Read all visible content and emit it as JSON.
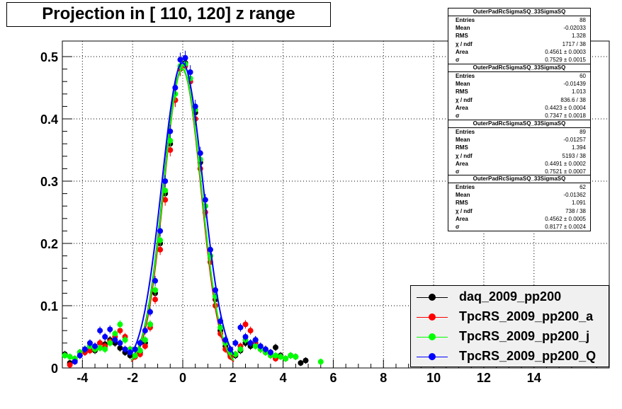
{
  "title": "Projection in [ 110, 120] z range",
  "chart_data": {
    "type": "scatter",
    "title": "Projection in [ 110, 120] z range",
    "xlabel": "",
    "ylabel": "",
    "xlim": [
      -4.8,
      17
    ],
    "ylim": [
      0,
      0.525
    ],
    "xticks": [
      -4,
      -2,
      0,
      2,
      4,
      6,
      8,
      10,
      12,
      14
    ],
    "yticks": [
      0,
      0.1,
      0.2,
      0.3,
      0.4,
      0.5
    ],
    "grid": true,
    "legend_position": "bottom-right",
    "series": [
      {
        "name": "daq_2009_pp200",
        "color": "#000000",
        "fit": {
          "amplitude": 0.48,
          "mean": -0.02,
          "sigma": 0.753
        },
        "points": [
          [
            -4.7,
            0.022
          ],
          [
            -4.5,
            0.008
          ],
          [
            -4.3,
            0.012
          ],
          [
            -4.1,
            0.025
          ],
          [
            -3.9,
            0.03
          ],
          [
            -3.7,
            0.035
          ],
          [
            -3.5,
            0.028
          ],
          [
            -3.3,
            0.04
          ],
          [
            -3.1,
            0.038
          ],
          [
            -2.9,
            0.045
          ],
          [
            -2.7,
            0.04
          ],
          [
            -2.5,
            0.032
          ],
          [
            -2.3,
            0.025
          ],
          [
            -2.1,
            0.02
          ],
          [
            -1.9,
            0.02
          ],
          [
            -1.7,
            0.025
          ],
          [
            -1.5,
            0.04
          ],
          [
            -1.3,
            0.07
          ],
          [
            -1.1,
            0.12
          ],
          [
            -0.9,
            0.2
          ],
          [
            -0.7,
            0.28
          ],
          [
            -0.5,
            0.36
          ],
          [
            -0.3,
            0.43
          ],
          [
            -0.1,
            0.48
          ],
          [
            0.1,
            0.49
          ],
          [
            0.3,
            0.46
          ],
          [
            0.5,
            0.41
          ],
          [
            0.7,
            0.33
          ],
          [
            0.9,
            0.26
          ],
          [
            1.1,
            0.18
          ],
          [
            1.3,
            0.11
          ],
          [
            1.5,
            0.06
          ],
          [
            1.7,
            0.035
          ],
          [
            1.9,
            0.02
          ],
          [
            2.1,
            0.02
          ],
          [
            2.3,
            0.028
          ],
          [
            2.5,
            0.04
          ],
          [
            2.7,
            0.035
          ],
          [
            2.9,
            0.045
          ],
          [
            3.1,
            0.03
          ],
          [
            3.3,
            0.03
          ],
          [
            3.5,
            0.025
          ],
          [
            3.7,
            0.033
          ],
          [
            3.9,
            0.02
          ],
          [
            4.1,
            0.015
          ],
          [
            4.3,
            0.02
          ],
          [
            4.5,
            0.018
          ],
          [
            4.7,
            0.008
          ],
          [
            4.9,
            0.012
          ]
        ]
      },
      {
        "name": "TpcRS_2009_pp200_a",
        "color": "#ff0000",
        "fit": {
          "amplitude": 0.48,
          "mean": -0.014,
          "sigma": 0.735
        },
        "points": [
          [
            -4.5,
            0.005
          ],
          [
            -4.3,
            0.015
          ],
          [
            -4.1,
            0.02
          ],
          [
            -3.9,
            0.025
          ],
          [
            -3.7,
            0.028
          ],
          [
            -3.5,
            0.03
          ],
          [
            -3.3,
            0.04
          ],
          [
            -3.1,
            0.035
          ],
          [
            -2.9,
            0.042
          ],
          [
            -2.7,
            0.05
          ],
          [
            -2.5,
            0.06
          ],
          [
            -2.3,
            0.05
          ],
          [
            -2.1,
            0.03
          ],
          [
            -1.9,
            0.018
          ],
          [
            -1.7,
            0.022
          ],
          [
            -1.5,
            0.035
          ],
          [
            -1.3,
            0.065
          ],
          [
            -1.1,
            0.11
          ],
          [
            -0.9,
            0.19
          ],
          [
            -0.7,
            0.27
          ],
          [
            -0.5,
            0.35
          ],
          [
            -0.3,
            0.43
          ],
          [
            -0.1,
            0.48
          ],
          [
            0.1,
            0.485
          ],
          [
            0.3,
            0.46
          ],
          [
            0.5,
            0.4
          ],
          [
            0.7,
            0.32
          ],
          [
            0.9,
            0.25
          ],
          [
            1.1,
            0.17
          ],
          [
            1.3,
            0.1
          ],
          [
            1.5,
            0.055
          ],
          [
            1.7,
            0.03
          ],
          [
            1.9,
            0.018
          ],
          [
            2.1,
            0.022
          ],
          [
            2.3,
            0.035
          ],
          [
            2.5,
            0.07
          ],
          [
            2.7,
            0.06
          ],
          [
            2.9,
            0.04
          ],
          [
            3.1,
            0.03
          ],
          [
            3.3,
            0.025
          ],
          [
            3.5,
            0.02
          ],
          [
            3.7,
            0.015
          ]
        ]
      },
      {
        "name": "TpcRS_2009_pp200_j",
        "color": "#00ff00",
        "fit": {
          "amplitude": 0.48,
          "mean": -0.013,
          "sigma": 0.752
        },
        "points": [
          [
            -4.7,
            0.02
          ],
          [
            -4.5,
            0.018
          ],
          [
            -4.3,
            0.015
          ],
          [
            -4.1,
            0.025
          ],
          [
            -3.9,
            0.03
          ],
          [
            -3.7,
            0.035
          ],
          [
            -3.5,
            0.03
          ],
          [
            -3.3,
            0.032
          ],
          [
            -3.1,
            0.03
          ],
          [
            -2.9,
            0.04
          ],
          [
            -2.7,
            0.055
          ],
          [
            -2.5,
            0.07
          ],
          [
            -2.3,
            0.045
          ],
          [
            -2.1,
            0.03
          ],
          [
            -1.9,
            0.02
          ],
          [
            -1.7,
            0.028
          ],
          [
            -1.5,
            0.045
          ],
          [
            -1.3,
            0.07
          ],
          [
            -1.1,
            0.125
          ],
          [
            -0.9,
            0.205
          ],
          [
            -0.7,
            0.285
          ],
          [
            -0.5,
            0.365
          ],
          [
            -0.3,
            0.44
          ],
          [
            -0.1,
            0.485
          ],
          [
            0.1,
            0.488
          ],
          [
            0.3,
            0.465
          ],
          [
            0.5,
            0.415
          ],
          [
            0.7,
            0.335
          ],
          [
            0.9,
            0.26
          ],
          [
            1.1,
            0.18
          ],
          [
            1.3,
            0.115
          ],
          [
            1.5,
            0.065
          ],
          [
            1.7,
            0.04
          ],
          [
            1.9,
            0.025
          ],
          [
            2.1,
            0.022
          ],
          [
            2.3,
            0.03
          ],
          [
            2.5,
            0.045
          ],
          [
            2.7,
            0.04
          ],
          [
            2.9,
            0.035
          ],
          [
            3.1,
            0.03
          ],
          [
            3.3,
            0.025
          ],
          [
            3.5,
            0.02
          ],
          [
            3.7,
            0.02
          ],
          [
            3.9,
            0.018
          ],
          [
            4.1,
            0.015
          ],
          [
            4.3,
            0.02
          ],
          [
            4.5,
            0.018
          ],
          [
            5.5,
            0.01
          ]
        ]
      },
      {
        "name": "TpcRS_2009_pp200_Q",
        "color": "#0000ff",
        "fit": {
          "amplitude": 0.49,
          "mean": -0.014,
          "sigma": 0.818
        },
        "points": [
          [
            -4.3,
            0.01
          ],
          [
            -4.1,
            0.02
          ],
          [
            -3.9,
            0.03
          ],
          [
            -3.7,
            0.04
          ],
          [
            -3.5,
            0.035
          ],
          [
            -3.3,
            0.06
          ],
          [
            -3.1,
            0.05
          ],
          [
            -2.9,
            0.062
          ],
          [
            -2.7,
            0.045
          ],
          [
            -2.5,
            0.04
          ],
          [
            -2.3,
            0.03
          ],
          [
            -2.1,
            0.025
          ],
          [
            -1.9,
            0.03
          ],
          [
            -1.7,
            0.04
          ],
          [
            -1.5,
            0.06
          ],
          [
            -1.3,
            0.09
          ],
          [
            -1.1,
            0.14
          ],
          [
            -0.9,
            0.22
          ],
          [
            -0.7,
            0.3
          ],
          [
            -0.5,
            0.38
          ],
          [
            -0.3,
            0.45
          ],
          [
            -0.1,
            0.495
          ],
          [
            0.1,
            0.498
          ],
          [
            0.3,
            0.475
          ],
          [
            0.5,
            0.42
          ],
          [
            0.7,
            0.345
          ],
          [
            0.9,
            0.27
          ],
          [
            1.1,
            0.19
          ],
          [
            1.3,
            0.125
          ],
          [
            1.5,
            0.075
          ],
          [
            1.7,
            0.045
          ],
          [
            1.9,
            0.03
          ],
          [
            2.1,
            0.04
          ],
          [
            2.3,
            0.065
          ],
          [
            2.5,
            0.05
          ],
          [
            2.7,
            0.04
          ],
          [
            2.9,
            0.045
          ],
          [
            3.1,
            0.035
          ],
          [
            3.3,
            0.03
          ],
          [
            3.5,
            0.025
          ]
        ]
      }
    ]
  },
  "stats_boxes": [
    {
      "header": "OuterPadRcSigmaSQ_33SigmaSQ",
      "rows": [
        [
          "Entries",
          "88"
        ],
        [
          "Mean",
          "-0.02033"
        ],
        [
          "RMS",
          "1.328"
        ],
        [
          "χ  / ndf",
          "1717 / 38"
        ],
        [
          "Area",
          "0.4561 ± 0.0003"
        ],
        [
          "σ",
          "0.7529 ± 0.0015"
        ]
      ]
    },
    {
      "header": "OuterPadRcSigmaSQ_33SigmaSQ",
      "rows": [
        [
          "Entries",
          "60"
        ],
        [
          "Mean",
          "-0.01439"
        ],
        [
          "RMS",
          "1.013"
        ],
        [
          "χ  / ndf",
          "836.6 / 38"
        ],
        [
          "Area",
          "0.4423 ± 0.0004"
        ],
        [
          "σ",
          "0.7347 ± 0.0018"
        ]
      ]
    },
    {
      "header": "OuterPadRcSigmaSQ_33SigmaSQ",
      "rows": [
        [
          "Entries",
          "89"
        ],
        [
          "Mean",
          "-0.01257"
        ],
        [
          "RMS",
          "1.394"
        ],
        [
          "χ  / ndf",
          "5193 / 38"
        ],
        [
          "Area",
          "0.4491 ± 0.0002"
        ],
        [
          "σ",
          "0.7521 ± 0.0007"
        ]
      ]
    },
    {
      "header": "OuterPadRcSigmaSQ_33SigmaSQ",
      "rows": [
        [
          "Entries",
          "62"
        ],
        [
          "Mean",
          "-0.01362"
        ],
        [
          "RMS",
          "1.091"
        ],
        [
          "χ  / ndf",
          "738 / 38"
        ],
        [
          "Area",
          "0.4562 ± 0.0005"
        ],
        [
          "σ",
          "0.8177 ± 0.0024"
        ]
      ]
    }
  ],
  "legend": {
    "items": [
      {
        "label": "daq_2009_pp200",
        "color": "#000000"
      },
      {
        "label": "TpcRS_2009_pp200_a",
        "color": "#ff0000"
      },
      {
        "label": "TpcRS_2009_pp200_j",
        "color": "#00ff00"
      },
      {
        "label": "TpcRS_2009_pp200_Q",
        "color": "#0000ff"
      }
    ]
  }
}
